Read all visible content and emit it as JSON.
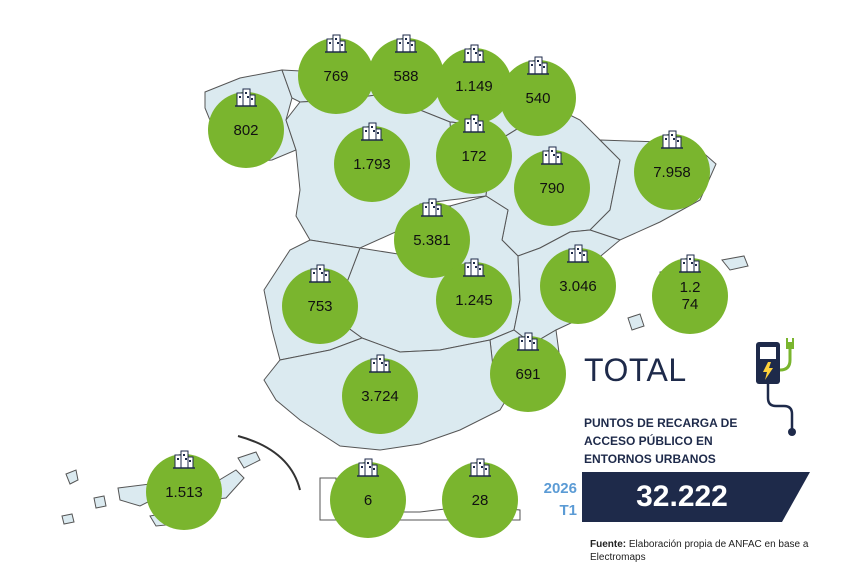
{
  "colors": {
    "region_fill": "#dbeaf0",
    "region_stroke": "#555555",
    "bubble": "#7ab52e",
    "navy": "#1e2a4a",
    "period_blue": "#5b9bd5"
  },
  "regions": [
    {
      "name": "Galicia",
      "value": "802"
    },
    {
      "name": "Asturias",
      "value": "769"
    },
    {
      "name": "Cantabria",
      "value": "588"
    },
    {
      "name": "País Vasco",
      "value": "1.149"
    },
    {
      "name": "Navarra",
      "value": "540"
    },
    {
      "name": "Castilla y León",
      "value": "1.793"
    },
    {
      "name": "La Rioja",
      "value": "172"
    },
    {
      "name": "Aragón",
      "value": "790"
    },
    {
      "name": "Cataluña",
      "value": "7.958"
    },
    {
      "name": "Madrid",
      "value": "5.381"
    },
    {
      "name": "Comunidad Valenciana",
      "value": "3.046"
    },
    {
      "name": "Baleares",
      "value": "1.2\n74"
    },
    {
      "name": "Extremadura",
      "value": "753"
    },
    {
      "name": "Castilla-La Mancha",
      "value": "1.245"
    },
    {
      "name": "Murcia",
      "value": "691"
    },
    {
      "name": "Andalucía",
      "value": "3.724"
    },
    {
      "name": "Canarias",
      "value": "1.513"
    },
    {
      "name": "Ceuta",
      "value": "6"
    },
    {
      "name": "Melilla",
      "value": "28"
    }
  ],
  "total": {
    "title": "TOTAL",
    "subtitle": "PUNTOS DE RECARGA DE ACCESO PÚBLICO EN ENTORNOS URBANOS",
    "value": "32.222",
    "period_year": "2026",
    "period_quarter": "T1"
  },
  "source": {
    "label": "Fuente:",
    "text": "Elaboración propia de ANFAC en base a Electromaps"
  },
  "icons": {
    "region": "city-buildings-icon",
    "charger": "ev-charger-icon"
  }
}
